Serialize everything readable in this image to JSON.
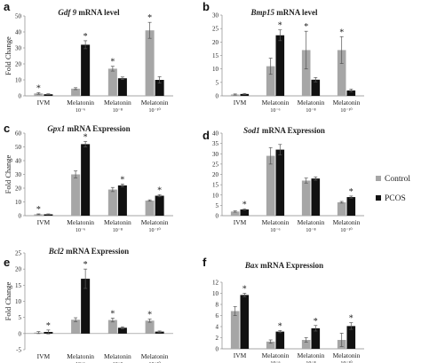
{
  "legend": {
    "position": "right",
    "entries": [
      {
        "name": "Control",
        "color": "#a6a6a6"
      },
      {
        "name": "PCOS",
        "color": "#111111"
      }
    ]
  },
  "chart_data": [
    {
      "type": "bar",
      "letter": "a",
      "gene": "Gdf 9",
      "title_suffix": " mRNA level",
      "ylabel": "Fold Change",
      "ylim": [
        0,
        50
      ],
      "yticks": [
        0,
        10,
        20,
        30,
        40,
        50
      ],
      "categories": [
        [
          "IVM"
        ],
        [
          "Melatonin",
          "10⁻⁶"
        ],
        [
          "Melatonin",
          "10⁻⁸"
        ],
        [
          "Melatonin",
          "10⁻¹⁰"
        ]
      ],
      "series": [
        {
          "values": [
            1.5,
            4.5,
            17,
            41
          ],
          "errors": [
            0.5,
            0.6,
            1.5,
            5
          ]
        },
        {
          "values": [
            1.0,
            32,
            11,
            10
          ],
          "errors": [
            0.3,
            2.5,
            0.8,
            2
          ]
        }
      ],
      "stars": [
        "*",
        "*",
        "*",
        "*"
      ]
    },
    {
      "type": "bar",
      "letter": "b",
      "gene": "Bmp15",
      "title_suffix": " mRNA level",
      "ylabel": "",
      "ylim": [
        0,
        30
      ],
      "yticks": [
        0,
        5,
        10,
        15,
        20,
        25,
        30
      ],
      "categories": [
        [
          "IVM"
        ],
        [
          "Melatonin",
          "10⁻⁶"
        ],
        [
          "Melatonin",
          "10⁻⁸"
        ],
        [
          "Melatonin",
          "10⁻¹⁰"
        ]
      ],
      "series": [
        {
          "values": [
            0.5,
            11,
            17,
            17
          ],
          "errors": [
            0.2,
            3,
            7,
            5
          ]
        },
        {
          "values": [
            0.7,
            22.5,
            6,
            2
          ],
          "errors": [
            0.2,
            2,
            0.8,
            0.5
          ]
        }
      ],
      "stars": [
        "",
        "*",
        "*",
        "*"
      ]
    },
    {
      "type": "bar",
      "letter": "c",
      "gene": "Gpx1",
      "title_suffix": " mRNA Expression",
      "ylabel": "Fold Change",
      "ylim": [
        0,
        60
      ],
      "yticks": [
        0,
        10,
        20,
        30,
        40,
        50,
        60
      ],
      "categories": [
        [
          "IVM"
        ],
        [
          "Melatonin",
          "10⁻⁶"
        ],
        [
          "Melatonin",
          "10⁻⁸"
        ],
        [
          "Melatonin",
          "10⁻¹⁰"
        ]
      ],
      "series": [
        {
          "values": [
            1,
            30,
            19,
            11
          ],
          "errors": [
            0.3,
            2.5,
            1.5,
            0.5
          ]
        },
        {
          "values": [
            1,
            52,
            22,
            14.5
          ],
          "errors": [
            0.3,
            2,
            1,
            0.8
          ]
        }
      ],
      "stars": [
        "*",
        "*",
        "*",
        "*"
      ]
    },
    {
      "type": "bar",
      "letter": "d",
      "gene": "Sod1",
      "title_suffix": " mRNA Expression",
      "ylabel": "",
      "ylim": [
        0,
        40
      ],
      "yticks": [
        0,
        5,
        10,
        15,
        20,
        25,
        30,
        35,
        40
      ],
      "categories": [
        [
          "IVM"
        ],
        [
          "Melatonin",
          "10⁻⁶"
        ],
        [
          "Melatonin",
          "10⁻⁸"
        ],
        [
          "Melatonin",
          "10⁻¹⁰"
        ]
      ],
      "series": [
        {
          "values": [
            2,
            29,
            17,
            6.5
          ],
          "errors": [
            0.3,
            4,
            1.2,
            0.4
          ]
        },
        {
          "values": [
            3,
            32,
            18,
            9
          ],
          "errors": [
            0.3,
            2.5,
            0.8,
            0.5
          ]
        }
      ],
      "stars": [
        "*",
        "",
        "",
        "*"
      ]
    },
    {
      "type": "bar",
      "letter": "e",
      "gene": "Bcl2",
      "title_suffix": " mRNA Expression",
      "ylabel": "Fold Change",
      "ylim": [
        -5,
        25
      ],
      "yticks": [
        -5,
        0,
        5,
        10,
        15,
        20,
        25
      ],
      "categories": [
        [
          "IVM"
        ],
        [
          "Melatonin",
          "10⁻⁶"
        ],
        [
          "Melatonin",
          "10⁻⁸"
        ],
        [
          "Melatonin",
          "10⁻¹⁰"
        ]
      ],
      "series": [
        {
          "values": [
            0.3,
            4.3,
            4.2,
            4
          ],
          "errors": [
            0.3,
            0.6,
            0.6,
            0.5
          ]
        },
        {
          "values": [
            0.5,
            17,
            1.8,
            0.6
          ],
          "errors": [
            0.6,
            3,
            0.3,
            0.2
          ]
        }
      ],
      "stars": [
        "*",
        "*",
        "*",
        "*"
      ]
    },
    {
      "type": "bar",
      "letter": "f",
      "gene": "Bax",
      "title_suffix": " mRNA Expression",
      "ylabel": "",
      "ylim": [
        0,
        12
      ],
      "yticks": [
        0,
        2,
        4,
        6,
        8,
        10,
        12
      ],
      "categories": [
        [
          "IVM"
        ],
        [
          "Melatonin",
          "10⁻⁶"
        ],
        [
          "Melatonin",
          "10⁻⁸"
        ],
        [
          "Melatonin",
          "10⁻¹⁰"
        ]
      ],
      "series": [
        {
          "values": [
            6.8,
            1.3,
            1.6,
            1.6
          ],
          "errors": [
            0.8,
            0.3,
            0.4,
            1.2
          ]
        },
        {
          "values": [
            9.7,
            3.1,
            3.7,
            4.1
          ],
          "errors": [
            0.3,
            0.2,
            0.5,
            0.6
          ]
        }
      ],
      "stars": [
        "*",
        "*",
        "*",
        "*"
      ]
    }
  ]
}
